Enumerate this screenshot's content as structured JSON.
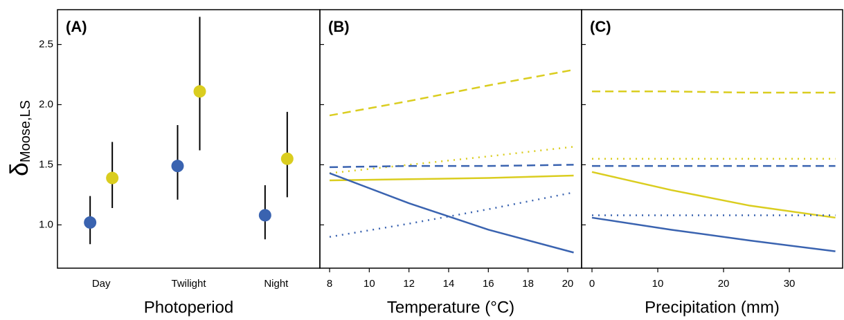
{
  "chart_data": [
    {
      "type": "pointrange",
      "title": "(A)",
      "x_label": "Photoperiod",
      "y_label": "δ",
      "y_label_subscript": "Moose,LS",
      "categories": [
        "Day",
        "Twilight",
        "Night"
      ],
      "series": [
        {
          "color": "#3a63b0",
          "values": [
            1.02,
            1.49,
            1.08
          ],
          "lower": [
            0.84,
            1.21,
            0.88
          ],
          "upper": [
            1.24,
            1.83,
            1.33
          ]
        },
        {
          "color": "#dacd1f",
          "values": [
            1.39,
            2.11,
            1.55
          ],
          "lower": [
            1.14,
            1.62,
            1.23
          ],
          "upper": [
            1.69,
            2.73,
            1.94
          ]
        }
      ],
      "ylim": [
        0.64,
        2.79
      ],
      "yticks": [
        {
          "value": 1.0,
          "label": "1.0"
        },
        1.5,
        {
          "value": 2.0,
          "label": "2.0"
        },
        2.5
      ]
    },
    {
      "type": "line",
      "title": "(B)",
      "x_label": "Temperature (°C)",
      "x": [
        8,
        12,
        16,
        20.3
      ],
      "series": [
        {
          "color": "#dacd1f",
          "dash": "dashed",
          "values": [
            1.91,
            2.03,
            2.16,
            2.29
          ]
        },
        {
          "color": "#dacd1f",
          "dash": "dotted",
          "values": [
            1.43,
            1.5,
            1.57,
            1.65
          ]
        },
        {
          "color": "#dacd1f",
          "dash": "solid",
          "values": [
            1.37,
            1.38,
            1.39,
            1.41
          ]
        },
        {
          "color": "#3a63b0",
          "dash": "dashed",
          "values": [
            1.48,
            1.49,
            1.49,
            1.5
          ]
        },
        {
          "color": "#3a63b0",
          "dash": "solid",
          "values": [
            1.43,
            1.18,
            0.96,
            0.77
          ]
        },
        {
          "color": "#3a63b0",
          "dash": "dotted",
          "values": [
            0.9,
            1.01,
            1.13,
            1.27
          ]
        }
      ],
      "xlim": [
        7.51,
        20.7
      ],
      "xticks": [
        8,
        10,
        12,
        14,
        16,
        18,
        20
      ],
      "ylim": [
        0.64,
        2.79
      ]
    },
    {
      "type": "line",
      "title": "(C)",
      "x_label": "Precipitation (mm)",
      "x": [
        0,
        12,
        24,
        37
      ],
      "series": [
        {
          "color": "#dacd1f",
          "dash": "dashed",
          "values": [
            2.11,
            2.11,
            2.1,
            2.1
          ]
        },
        {
          "color": "#dacd1f",
          "dash": "dotted",
          "values": [
            1.55,
            1.55,
            1.55,
            1.55
          ]
        },
        {
          "color": "#3a63b0",
          "dash": "dashed",
          "values": [
            1.49,
            1.49,
            1.49,
            1.49
          ]
        },
        {
          "color": "#dacd1f",
          "dash": "solid",
          "values": [
            1.44,
            1.29,
            1.16,
            1.06
          ]
        },
        {
          "color": "#3a63b0",
          "dash": "dotted",
          "values": [
            1.08,
            1.08,
            1.08,
            1.08
          ]
        },
        {
          "color": "#3a63b0",
          "dash": "solid",
          "values": [
            1.06,
            0.96,
            0.87,
            0.78
          ]
        }
      ],
      "xlim": [
        -1.58,
        38.1
      ],
      "xticks": [
        0,
        10,
        20,
        30
      ],
      "ylim": [
        0.64,
        2.79
      ]
    }
  ]
}
